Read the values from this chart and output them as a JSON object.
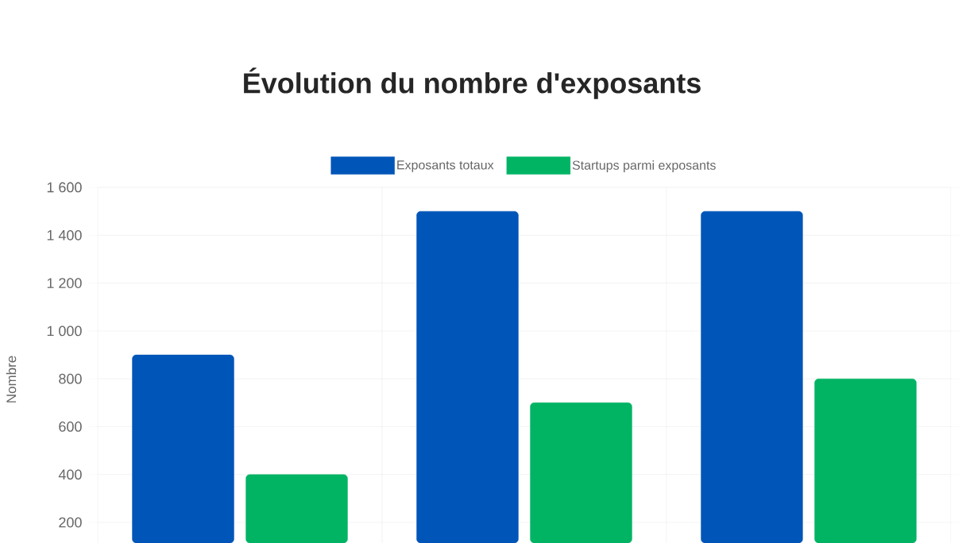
{
  "chart_data": {
    "type": "bar",
    "title": "Évolution du nombre d'exposants",
    "ylabel": "Nombre",
    "categories": [
      null,
      null,
      null
    ],
    "series": [
      {
        "name": "Exposants totaux",
        "color": "#0055b8",
        "values": [
          900,
          1500,
          1500
        ]
      },
      {
        "name": "Startups parmi exposants",
        "color": "#00b464",
        "values": [
          400,
          700,
          800
        ]
      }
    ],
    "ylim": [
      114,
      1600
    ],
    "yticks": [
      {
        "value": 200,
        "label": "200"
      },
      {
        "value": 400,
        "label": "400"
      },
      {
        "value": 600,
        "label": "600"
      },
      {
        "value": 800,
        "label": "800"
      },
      {
        "value": 1000,
        "label": "1 000"
      },
      {
        "value": 1200,
        "label": "1 200"
      },
      {
        "value": 1400,
        "label": "1 400"
      },
      {
        "value": 1600,
        "label": "1 600"
      }
    ],
    "grid": true,
    "legend": "top"
  }
}
